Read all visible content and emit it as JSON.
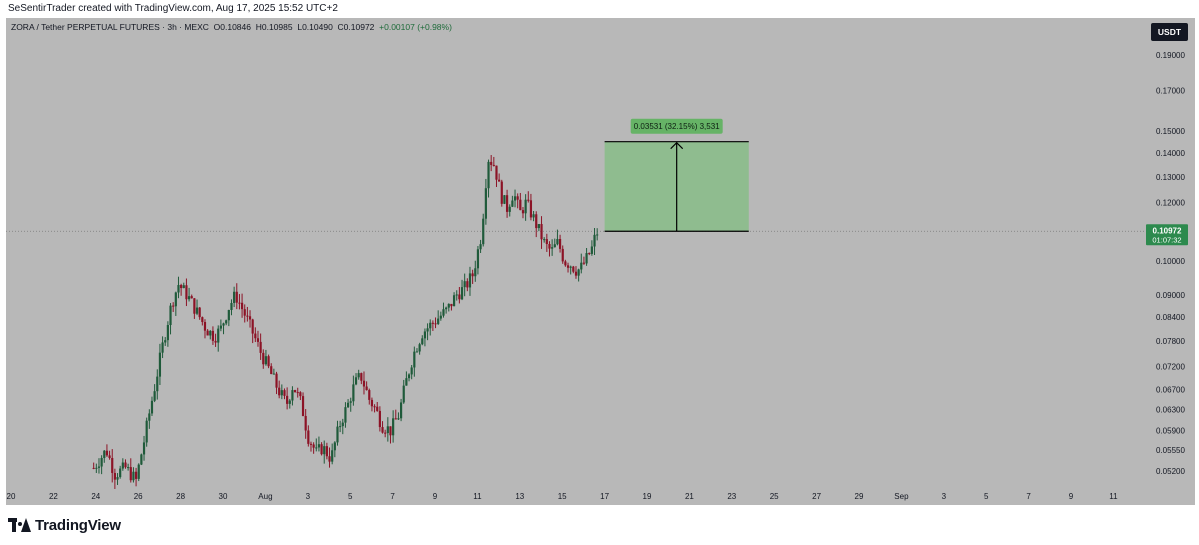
{
  "credit": "SeSentirTrader created with TradingView.com, Aug 17, 2025 15:52 UTC+2",
  "header": {
    "symbol": "ZORA / Tether PERPETUAL FUTURES · 3h · MEXC",
    "open": "O0.10846",
    "high": "H0.10985",
    "low": "L0.10490",
    "close": "C0.10972",
    "change": "+0.00107 (+0.98%)"
  },
  "currency_button": "USDT",
  "price_label": {
    "price": "0.10972",
    "countdown": "01:07:32"
  },
  "measure_label": "0.03531 (32.15%) 3,531",
  "brand": "TradingView",
  "colors": {
    "background": "#b8b8b8",
    "bull": "#1f5a3a",
    "bear": "#8c1326",
    "measure_fill": "#8fbc8f",
    "measure_label_bg": "#66b366",
    "price_label_bg": "#2d8a4e"
  },
  "chart_data": {
    "type": "candlestick",
    "y_scale": "log",
    "y_ticks": [
      "0.19000",
      "0.17000",
      "0.15000",
      "0.14000",
      "0.13000",
      "0.12000",
      "0.10000",
      "0.09000",
      "0.08400",
      "0.07800",
      "0.07200",
      "0.06700",
      "0.06300",
      "0.05900",
      "0.05550",
      "0.05200"
    ],
    "x_ticks": [
      "20",
      "22",
      "24",
      "26",
      "28",
      "30",
      "Aug",
      "3",
      "5",
      "7",
      "9",
      "11",
      "13",
      "15",
      "17",
      "19",
      "21",
      "23",
      "25",
      "27",
      "29",
      "Sep",
      "3",
      "5",
      "7",
      "9",
      "11"
    ],
    "last_price": 0.10972,
    "price_path": [
      [
        23.9,
        0.0525
      ],
      [
        24.5,
        0.0555
      ],
      [
        24.9,
        0.0515
      ],
      [
        25.4,
        0.0525
      ],
      [
        25.9,
        0.0505
      ],
      [
        26.3,
        0.0575
      ],
      [
        26.8,
        0.068
      ],
      [
        27.2,
        0.078
      ],
      [
        27.6,
        0.088
      ],
      [
        27.9,
        0.093
      ],
      [
        28.3,
        0.09
      ],
      [
        28.8,
        0.085
      ],
      [
        29.2,
        0.081
      ],
      [
        29.6,
        0.079
      ],
      [
        29.9,
        0.081
      ],
      [
        30.3,
        0.087
      ],
      [
        30.6,
        0.09
      ],
      [
        31.0,
        0.085
      ],
      [
        31.4,
        0.08
      ],
      [
        31.8,
        0.075
      ],
      [
        32.2,
        0.071
      ],
      [
        32.6,
        0.067
      ],
      [
        33.0,
        0.064
      ],
      [
        33.3,
        0.068
      ],
      [
        33.7,
        0.064
      ],
      [
        34.0,
        0.058
      ],
      [
        34.4,
        0.055
      ],
      [
        34.7,
        0.056
      ],
      [
        35.1,
        0.054
      ],
      [
        35.5,
        0.06
      ],
      [
        35.9,
        0.064
      ],
      [
        36.2,
        0.068
      ],
      [
        36.5,
        0.07
      ],
      [
        36.9,
        0.065
      ],
      [
        37.2,
        0.063
      ],
      [
        37.5,
        0.06
      ],
      [
        37.9,
        0.059
      ],
      [
        38.3,
        0.062
      ],
      [
        38.6,
        0.068
      ],
      [
        39.0,
        0.075
      ],
      [
        39.4,
        0.08
      ],
      [
        39.8,
        0.082
      ],
      [
        40.2,
        0.084
      ],
      [
        40.6,
        0.086
      ],
      [
        41.0,
        0.09
      ],
      [
        41.4,
        0.092
      ],
      [
        41.8,
        0.096
      ],
      [
        42.2,
        0.109
      ],
      [
        42.5,
        0.138
      ],
      [
        42.8,
        0.135
      ],
      [
        43.1,
        0.123
      ],
      [
        43.4,
        0.118
      ],
      [
        43.7,
        0.124
      ],
      [
        44.0,
        0.116
      ],
      [
        44.3,
        0.12
      ],
      [
        44.6,
        0.115
      ],
      [
        44.9,
        0.11
      ],
      [
        45.2,
        0.105
      ],
      [
        45.5,
        0.103
      ],
      [
        45.8,
        0.106
      ],
      [
        46.1,
        0.1
      ],
      [
        46.4,
        0.099
      ],
      [
        46.7,
        0.097
      ],
      [
        46.9,
        0.098
      ],
      [
        47.1,
        0.1
      ],
      [
        47.4,
        0.104
      ],
      [
        47.6,
        0.109
      ],
      [
        47.7,
        0.1097
      ]
    ],
    "measure": {
      "from_x": 48.0,
      "to_x": 54.8,
      "from_price": 0.10972,
      "to_price": 0.14503,
      "change": 0.03531,
      "change_pct": 32.15,
      "ticks": 3531
    }
  }
}
